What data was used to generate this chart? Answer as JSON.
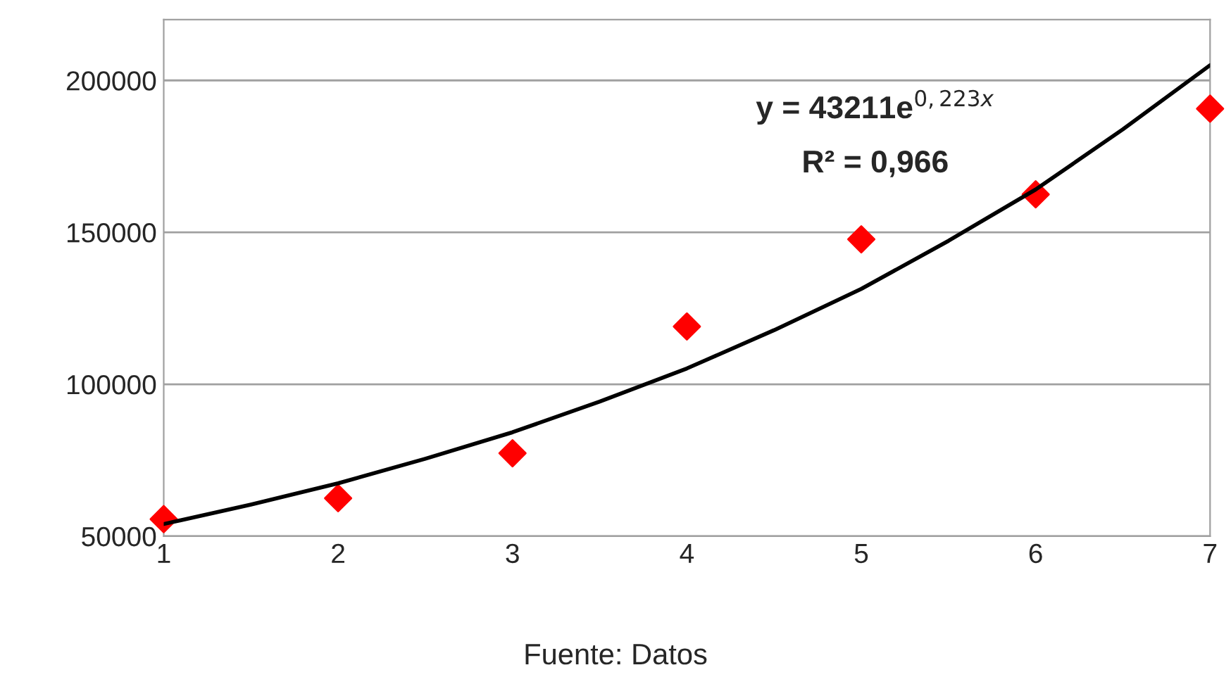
{
  "chart_data": {
    "type": "scatter",
    "x": [
      1,
      2,
      3,
      4,
      5,
      6,
      7
    ],
    "series": [
      {
        "color": "#ff0000",
        "marker": "diamond",
        "values": [
          55600,
          62500,
          77300,
          119000,
          147700,
          162500,
          190700
        ]
      },
      {
        "type": "line",
        "color": "#000000",
        "marker": "none",
        "line_style": "solid",
        "x": [
          1,
          1.5,
          2,
          2.5,
          3,
          3.5,
          4,
          4.5,
          5,
          5.5,
          6,
          6.5,
          7
        ],
        "values": [
          54000,
          60400,
          67400,
          75500,
          84200,
          94300,
          105200,
          117800,
          131400,
          147200,
          164100,
          183900,
          205000
        ]
      }
    ],
    "xlim": [
      1,
      7
    ],
    "xticks": [
      1,
      2,
      3,
      4,
      5,
      6,
      7
    ],
    "ylim": [
      50000,
      220000
    ],
    "yticks": [
      50000,
      100000,
      150000,
      200000
    ],
    "grid": "y",
    "annotations": [
      "y = 43211e$^{0,223x}$",
      "R² = 0,966",
      "Fuente: Datos"
    ]
  }
}
